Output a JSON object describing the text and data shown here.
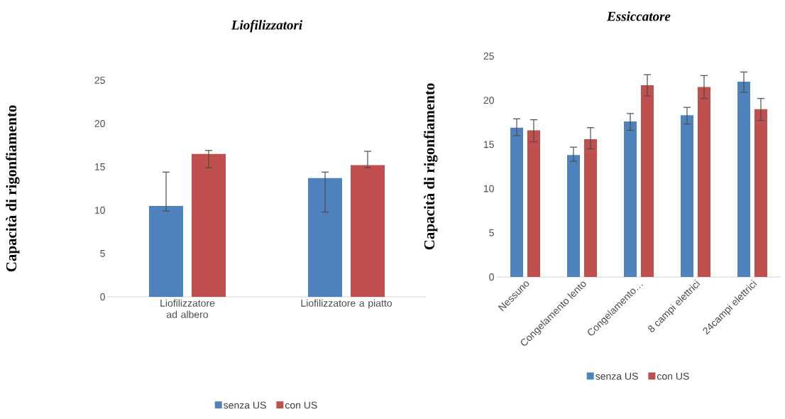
{
  "chart_data": [
    {
      "type": "bar",
      "title": "Liofilizzatori",
      "ylabel": "Capacità di rigonfiamento",
      "categories": [
        "Liofilizzatore ad albero",
        "Liofilizzatore a piatto"
      ],
      "series": [
        {
          "name": "senza US",
          "color": "#4f81bd",
          "values": [
            10.5,
            13.7
          ],
          "errors": [
            [
              9.9,
              14.4
            ],
            [
              9.8,
              14.4
            ]
          ]
        },
        {
          "name": "con US",
          "color": "#c0504d",
          "values": [
            16.5,
            15.2
          ],
          "errors": [
            [
              14.9,
              16.9
            ],
            [
              14.9,
              16.8
            ]
          ]
        }
      ],
      "ylim": [
        0,
        25
      ],
      "yticks": [
        0,
        5,
        10,
        15,
        20,
        25
      ],
      "legend": "bottom"
    },
    {
      "type": "bar",
      "title": "Essiccatore",
      "ylabel": "Capacità di rigonfiamento",
      "categories": [
        "Nessuno",
        "Congelamento lento",
        "Congelamento…",
        "8 campi elettrici",
        "24campi elettrici"
      ],
      "series": [
        {
          "name": "senza US",
          "color": "#4f81bd",
          "values": [
            16.9,
            13.8,
            17.6,
            18.3,
            22.1
          ],
          "errors": [
            [
              16.0,
              17.9
            ],
            [
              13.1,
              14.7
            ],
            [
              16.6,
              18.5
            ],
            [
              17.3,
              19.2
            ],
            [
              20.9,
              23.2
            ]
          ]
        },
        {
          "name": "con US",
          "color": "#c0504d",
          "values": [
            16.6,
            15.6,
            21.7,
            21.5,
            19.0
          ],
          "errors": [
            [
              15.3,
              17.8
            ],
            [
              14.5,
              16.9
            ],
            [
              20.5,
              22.9
            ],
            [
              20.2,
              22.8
            ],
            [
              17.7,
              20.2
            ]
          ]
        }
      ],
      "ylim": [
        0,
        25
      ],
      "yticks": [
        0,
        5,
        10,
        15,
        20,
        25
      ],
      "legend": "bottom"
    }
  ]
}
